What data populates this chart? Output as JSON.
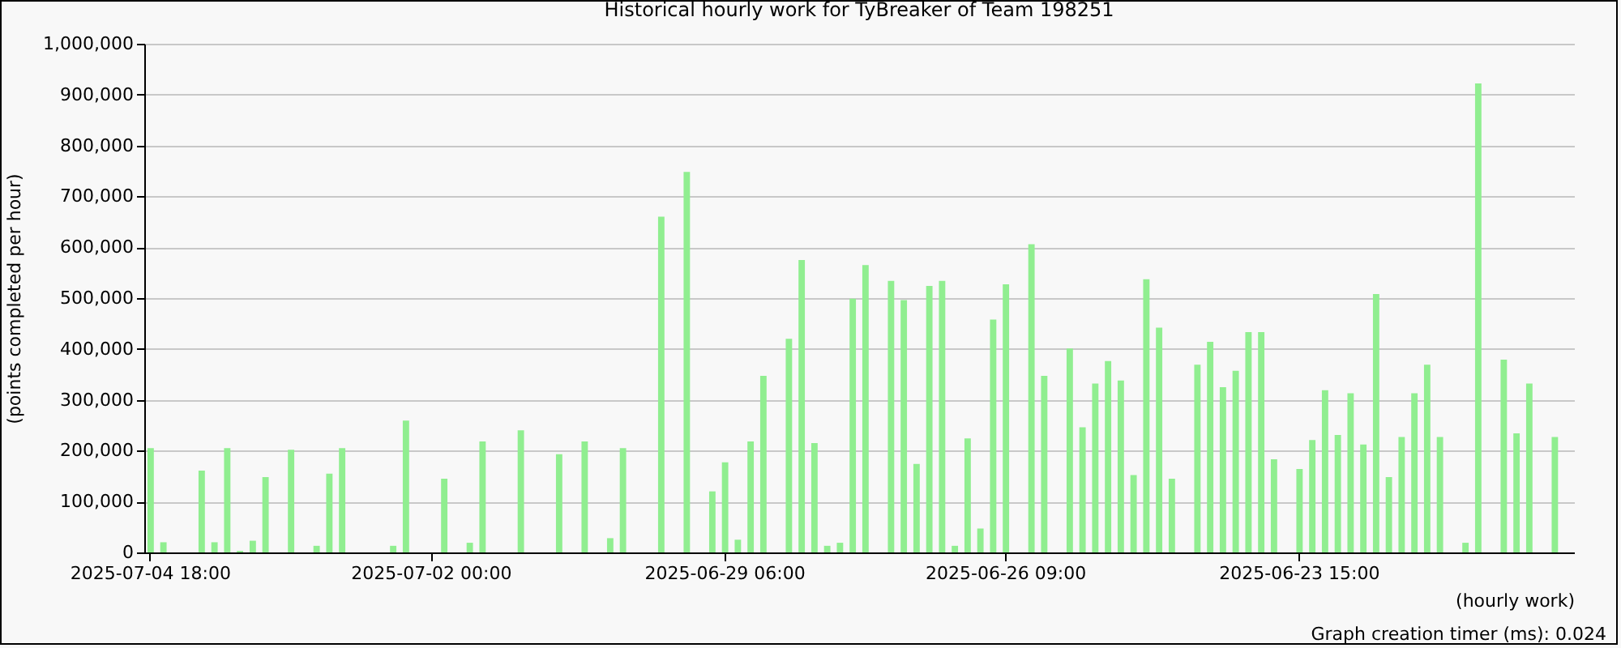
{
  "chart_data": {
    "type": "bar",
    "title": "Historical hourly work for TyBreaker of Team 198251",
    "xlabel": "(hourly work)",
    "ylabel": "(points completed per hour)",
    "annotations": [
      "Graph creation timer (ms): 0.024"
    ],
    "categories": [
      "2025-07-04 18:00",
      null,
      null,
      null,
      null,
      null,
      null,
      null,
      null,
      null,
      null,
      null,
      null,
      null,
      null,
      null,
      null,
      null,
      null,
      null,
      null,
      null,
      "2025-07-02 00:00",
      null,
      null,
      null,
      null,
      null,
      null,
      null,
      null,
      null,
      null,
      null,
      null,
      null,
      null,
      null,
      null,
      null,
      null,
      null,
      null,
      null,
      null,
      "2025-06-29 06:00",
      null,
      null,
      null,
      null,
      null,
      null,
      null,
      null,
      null,
      null,
      null,
      null,
      null,
      null,
      null,
      null,
      null,
      null,
      null,
      null,
      null,
      "2025-06-26 09:00",
      null,
      null,
      null,
      null,
      null,
      null,
      null,
      null,
      null,
      null,
      null,
      null,
      null,
      null,
      null,
      null,
      null,
      null,
      null,
      null,
      null,
      null,
      "2025-06-23 15:00",
      null,
      null,
      null,
      null,
      null,
      null,
      null,
      null,
      null,
      null,
      null,
      null,
      null,
      null,
      null,
      null,
      null,
      null,
      null,
      null,
      null
    ],
    "values": [
      205000,
      20000,
      null,
      null,
      161000,
      20000,
      205000,
      3000,
      23000,
      148000,
      null,
      202000,
      null,
      13000,
      155000,
      205000,
      null,
      null,
      null,
      13000,
      259000,
      null,
      null,
      145000,
      null,
      19000,
      218000,
      null,
      null,
      240000,
      null,
      null,
      193000,
      null,
      218000,
      null,
      28000,
      205000,
      null,
      null,
      660000,
      null,
      748000,
      null,
      120000,
      177000,
      25000,
      218000,
      347000,
      null,
      420000,
      575000,
      215000,
      13000,
      19000,
      499000,
      565000,
      null,
      534000,
      496000,
      174000,
      524000,
      534000,
      13000,
      224000,
      47000,
      458000,
      527000,
      null,
      606000,
      347000,
      null,
      401000,
      246000,
      332000,
      376000,
      338000,
      152000,
      537000,
      442000,
      145000,
      null,
      369000,
      414000,
      325000,
      357000,
      433000,
      433000,
      183000,
      null,
      164000,
      221000,
      319000,
      231000,
      313000,
      212000,
      508000,
      148000,
      227000,
      313000,
      369000,
      227000,
      null,
      19000,
      922000,
      null,
      379000,
      234000,
      332000,
      null,
      227000,
      null
    ],
    "color": "#90ee90",
    "ylim": [
      0,
      1000000
    ],
    "yticks": [
      {
        "value": 0,
        "label": "0"
      },
      {
        "value": 100000,
        "label": "100,000"
      },
      {
        "value": 200000,
        "label": "200,000"
      },
      {
        "value": 300000,
        "label": "300,000"
      },
      {
        "value": 400000,
        "label": "400,000"
      },
      {
        "value": 500000,
        "label": "500,000"
      },
      {
        "value": 600000,
        "label": "600,000"
      },
      {
        "value": 700000,
        "label": "700,000"
      },
      {
        "value": 800000,
        "label": "800,000"
      },
      {
        "value": 900000,
        "label": "900,000"
      },
      {
        "value": 1000000,
        "label": "1,000,000"
      }
    ],
    "grid": "y"
  }
}
